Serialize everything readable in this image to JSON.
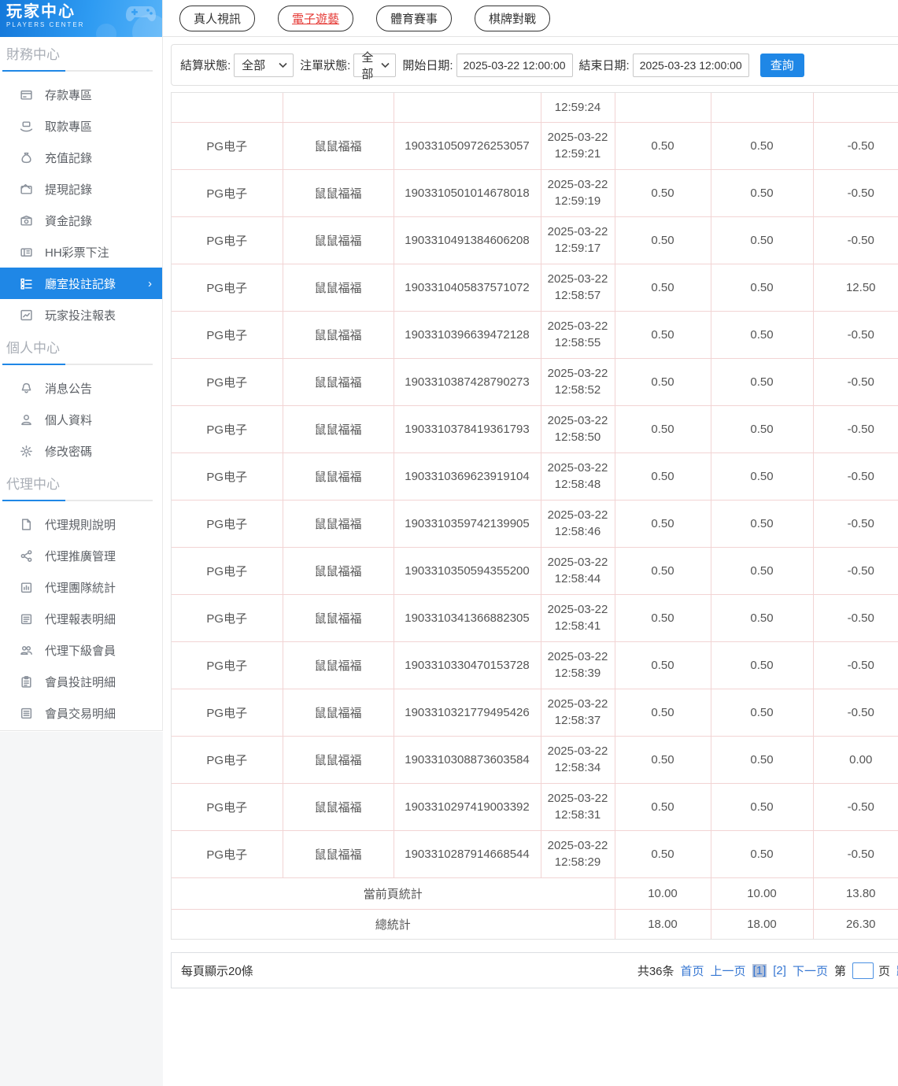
{
  "colors": {
    "accent": "#1f87e6",
    "link": "#3576d2",
    "red": "#e53935",
    "grid_pink": "#f2d4d4"
  },
  "app": {
    "title": "玩家中心",
    "subtitle": "PLAYERS CENTER"
  },
  "sidebar": {
    "sections": [
      {
        "title": "財務中心",
        "items": [
          {
            "id": "deposit",
            "icon": "deposit",
            "label": "存款專區",
            "active": false
          },
          {
            "id": "withdraw",
            "icon": "withdraw",
            "label": "取款專區",
            "active": false
          },
          {
            "id": "recharge-records",
            "icon": "recharge",
            "label": "充值記錄",
            "active": false
          },
          {
            "id": "cashout-records",
            "icon": "cashout",
            "label": "提現記錄",
            "active": false
          },
          {
            "id": "funds-records",
            "icon": "funds",
            "label": "資金記錄",
            "active": false
          },
          {
            "id": "hh-lottery-bets",
            "icon": "lottery",
            "label": "HH彩票下注",
            "active": false
          },
          {
            "id": "hall-bet-records",
            "icon": "hall-bet",
            "label": "廳室投註記錄",
            "active": true
          },
          {
            "id": "player-bet-report",
            "icon": "player-report",
            "label": "玩家投注報表",
            "active": false
          }
        ]
      },
      {
        "title": "個人中心",
        "items": [
          {
            "id": "notices",
            "icon": "bell",
            "label": "消息公告",
            "active": false
          },
          {
            "id": "profile",
            "icon": "user",
            "label": "個人資料",
            "active": false
          },
          {
            "id": "change-password",
            "icon": "gear",
            "label": "修改密碼",
            "active": false
          }
        ]
      },
      {
        "title": "代理中心",
        "items": [
          {
            "id": "agent-rules",
            "icon": "doc",
            "label": "代理規則說明",
            "active": false
          },
          {
            "id": "agent-promotion",
            "icon": "share",
            "label": "代理推廣管理",
            "active": false
          },
          {
            "id": "agent-team-stats",
            "icon": "team-report",
            "label": "代理團隊統計",
            "active": false
          },
          {
            "id": "agent-report-detail",
            "icon": "report-detail",
            "label": "代理報表明細",
            "active": false
          },
          {
            "id": "agent-sub-members",
            "icon": "members",
            "label": "代理下級會員",
            "active": false
          },
          {
            "id": "member-bet-detail",
            "icon": "bet-detail",
            "label": "會員投註明細",
            "active": false
          },
          {
            "id": "member-trade-detail",
            "icon": "trade-detail",
            "label": "會員交易明細",
            "active": false
          }
        ]
      }
    ]
  },
  "topnav": {
    "tabs": [
      {
        "id": "live-casino",
        "label": "真人視訊",
        "active": false
      },
      {
        "id": "electronic-games",
        "label": "電子遊藝",
        "active": true
      },
      {
        "id": "sports",
        "label": "體育賽事",
        "active": false
      },
      {
        "id": "board-games",
        "label": "棋牌對戰",
        "active": false
      }
    ]
  },
  "filters": {
    "settle_status_label": "結算狀態:",
    "settle_status_value": "全部",
    "order_status_label": "注單狀態:",
    "order_status_value": "全部",
    "start_label": "開始日期:",
    "start_value": "2025-03-22 12:00:00",
    "end_label": "結束日期:",
    "end_value": "2025-03-23 12:00:00",
    "search_label": "查詢"
  },
  "table": {
    "partial_row_time": "12:59:24",
    "rows": [
      {
        "platform": "PG电子",
        "game": "鼠鼠福福",
        "order": "1903310509726253057",
        "date": "2025-03-22",
        "time": "12:59:21",
        "bet": "0.50",
        "valid": "0.50",
        "result": "-0.50"
      },
      {
        "platform": "PG电子",
        "game": "鼠鼠福福",
        "order": "1903310501014678018",
        "date": "2025-03-22",
        "time": "12:59:19",
        "bet": "0.50",
        "valid": "0.50",
        "result": "-0.50"
      },
      {
        "platform": "PG电子",
        "game": "鼠鼠福福",
        "order": "1903310491384606208",
        "date": "2025-03-22",
        "time": "12:59:17",
        "bet": "0.50",
        "valid": "0.50",
        "result": "-0.50"
      },
      {
        "platform": "PG电子",
        "game": "鼠鼠福福",
        "order": "1903310405837571072",
        "date": "2025-03-22",
        "time": "12:58:57",
        "bet": "0.50",
        "valid": "0.50",
        "result": "12.50"
      },
      {
        "platform": "PG电子",
        "game": "鼠鼠福福",
        "order": "1903310396639472128",
        "date": "2025-03-22",
        "time": "12:58:55",
        "bet": "0.50",
        "valid": "0.50",
        "result": "-0.50"
      },
      {
        "platform": "PG电子",
        "game": "鼠鼠福福",
        "order": "1903310387428790273",
        "date": "2025-03-22",
        "time": "12:58:52",
        "bet": "0.50",
        "valid": "0.50",
        "result": "-0.50"
      },
      {
        "platform": "PG电子",
        "game": "鼠鼠福福",
        "order": "1903310378419361793",
        "date": "2025-03-22",
        "time": "12:58:50",
        "bet": "0.50",
        "valid": "0.50",
        "result": "-0.50"
      },
      {
        "platform": "PG电子",
        "game": "鼠鼠福福",
        "order": "1903310369623919104",
        "date": "2025-03-22",
        "time": "12:58:48",
        "bet": "0.50",
        "valid": "0.50",
        "result": "-0.50"
      },
      {
        "platform": "PG电子",
        "game": "鼠鼠福福",
        "order": "1903310359742139905",
        "date": "2025-03-22",
        "time": "12:58:46",
        "bet": "0.50",
        "valid": "0.50",
        "result": "-0.50"
      },
      {
        "platform": "PG电子",
        "game": "鼠鼠福福",
        "order": "1903310350594355200",
        "date": "2025-03-22",
        "time": "12:58:44",
        "bet": "0.50",
        "valid": "0.50",
        "result": "-0.50"
      },
      {
        "platform": "PG电子",
        "game": "鼠鼠福福",
        "order": "1903310341366882305",
        "date": "2025-03-22",
        "time": "12:58:41",
        "bet": "0.50",
        "valid": "0.50",
        "result": "-0.50"
      },
      {
        "platform": "PG电子",
        "game": "鼠鼠福福",
        "order": "1903310330470153728",
        "date": "2025-03-22",
        "time": "12:58:39",
        "bet": "0.50",
        "valid": "0.50",
        "result": "-0.50"
      },
      {
        "platform": "PG电子",
        "game": "鼠鼠福福",
        "order": "1903310321779495426",
        "date": "2025-03-22",
        "time": "12:58:37",
        "bet": "0.50",
        "valid": "0.50",
        "result": "-0.50"
      },
      {
        "platform": "PG电子",
        "game": "鼠鼠福福",
        "order": "1903310308873603584",
        "date": "2025-03-22",
        "time": "12:58:34",
        "bet": "0.50",
        "valid": "0.50",
        "result": "0.00"
      },
      {
        "platform": "PG电子",
        "game": "鼠鼠福福",
        "order": "1903310297419003392",
        "date": "2025-03-22",
        "time": "12:58:31",
        "bet": "0.50",
        "valid": "0.50",
        "result": "-0.50"
      },
      {
        "platform": "PG电子",
        "game": "鼠鼠福福",
        "order": "1903310287914668544",
        "date": "2025-03-22",
        "time": "12:58:29",
        "bet": "0.50",
        "valid": "0.50",
        "result": "-0.50"
      }
    ],
    "summary": [
      {
        "label": "當前頁統計",
        "bet": "10.00",
        "valid": "10.00",
        "result": "13.80"
      },
      {
        "label": "總統計",
        "bet": "18.00",
        "valid": "18.00",
        "result": "26.30"
      }
    ]
  },
  "pagination": {
    "per_page": "每頁顯示20條",
    "total": "共36条",
    "first": "首页",
    "prev": "上一页",
    "page1": "[1]",
    "page2": "[2]",
    "next": "下一页",
    "jump_prefix": "第",
    "jump_suffix": "页",
    "jump_action": "跳转"
  }
}
